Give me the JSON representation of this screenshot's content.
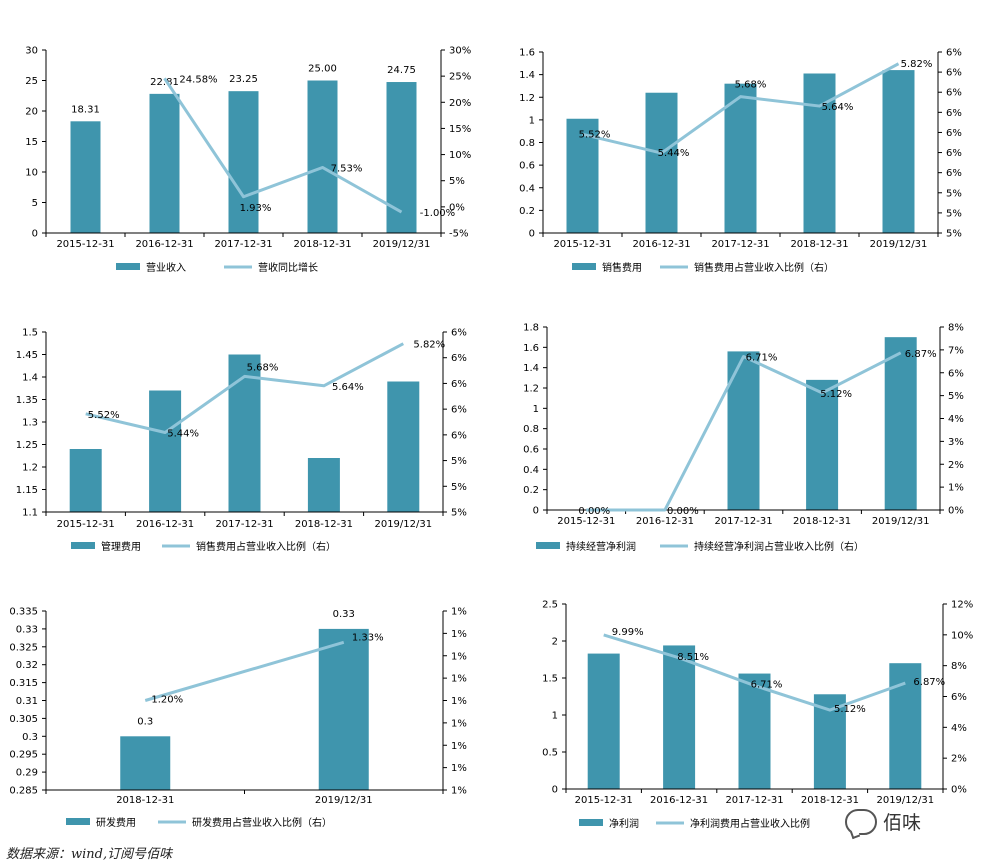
{
  "colors": {
    "bar": "#3f95ad",
    "line": "#8fc4d8",
    "axis": "#000000",
    "text": "#000000"
  },
  "source_note": "数据来源：wind,订阅号佰味",
  "watermark": "佰味",
  "chart_data": [
    {
      "type": "bar+line",
      "categories": [
        "2015-12-31",
        "2016-12-31",
        "2017-12-31",
        "2018-12-31",
        "2019/12/31"
      ],
      "bar": {
        "name": "营业收入",
        "values": [
          18.31,
          22.81,
          23.25,
          25.0,
          24.75
        ],
        "labels": [
          "18.31",
          "22.81",
          "23.25",
          "25.00",
          "24.75"
        ]
      },
      "line": {
        "name": "营收同比增长",
        "points": [
          [
            1,
            24.58
          ],
          [
            2,
            1.93
          ],
          [
            3,
            7.53
          ],
          [
            4,
            -1.0
          ]
        ],
        "labels": [
          "24.58%",
          "1.93%",
          "7.53%",
          "-1.00%"
        ]
      },
      "left_axis": {
        "min": 0,
        "max": 30,
        "ticks": [
          "0",
          "5",
          "10",
          "15",
          "20",
          "25",
          "30"
        ]
      },
      "right_axis": {
        "min": -5,
        "max": 30,
        "ticks": [
          "-5%",
          "0%",
          "5%",
          "10%",
          "15%",
          "20%",
          "25%",
          "30%"
        ]
      }
    },
    {
      "type": "bar+line",
      "categories": [
        "2015-12-31",
        "2016-12-31",
        "2017-12-31",
        "2018-12-31",
        "2019/12/31"
      ],
      "bar": {
        "name": "销售费用",
        "values": [
          1.01,
          1.24,
          1.32,
          1.41,
          1.44
        ],
        "labels": []
      },
      "line": {
        "name": "销售费用占营业收入比例（右）",
        "points": [
          [
            0,
            5.52
          ],
          [
            1,
            5.44
          ],
          [
            2,
            5.68
          ],
          [
            3,
            5.64
          ],
          [
            4,
            5.82
          ]
        ],
        "labels": [
          "5.52%",
          "5.44%",
          "5.68%",
          "5.64%",
          "5.82%"
        ]
      },
      "left_axis": {
        "min": 0,
        "max": 1.6,
        "ticks": [
          "0",
          "0.2",
          "0.4",
          "0.6",
          "0.8",
          "1",
          "1.2",
          "1.4",
          "1.6"
        ]
      },
      "right_axis": {
        "min": 5.1,
        "max": 5.87,
        "ticks": [
          "5%",
          "5%",
          "5%",
          "6%",
          "6%",
          "6%",
          "6%",
          "6%",
          "6%",
          "6%"
        ]
      }
    },
    {
      "type": "bar+line",
      "categories": [
        "2015-12-31",
        "2016-12-31",
        "2017-12-31",
        "2018-12-31",
        "2019/12/31"
      ],
      "bar": {
        "name": "管理费用",
        "values": [
          1.24,
          1.37,
          1.45,
          1.22,
          1.39
        ],
        "labels": []
      },
      "line": {
        "name": "销售费用占营业收入比例（右）",
        "points": [
          [
            0,
            5.52
          ],
          [
            1,
            5.44
          ],
          [
            2,
            5.68
          ],
          [
            3,
            5.64
          ],
          [
            4,
            5.82
          ]
        ],
        "labels": [
          "5.52%",
          "5.44%",
          "5.68%",
          "5.64%",
          "5.82%"
        ]
      },
      "left_axis": {
        "min": 1.1,
        "max": 1.5,
        "ticks": [
          "1.1",
          "1.15",
          "1.2",
          "1.25",
          "1.3",
          "1.35",
          "1.4",
          "1.45",
          "1.5"
        ]
      },
      "right_axis": {
        "min": 5.1,
        "max": 5.87,
        "ticks": [
          "5%",
          "5%",
          "5%",
          "6%",
          "6%",
          "6%",
          "6%",
          "6%"
        ]
      }
    },
    {
      "type": "bar+line",
      "categories": [
        "2015-12-31",
        "2016-12-31",
        "2017-12-31",
        "2018-12-31",
        "2019/12/31"
      ],
      "bar": {
        "name": "持续经营净利润",
        "values": [
          0,
          0,
          1.56,
          1.28,
          1.7
        ],
        "labels": []
      },
      "line": {
        "name": "持续经营净利润占营业收入比例（右）",
        "points": [
          [
            0,
            0.0
          ],
          [
            1,
            0.0
          ],
          [
            2,
            6.71
          ],
          [
            3,
            5.12
          ],
          [
            4,
            6.87
          ]
        ],
        "labels": [
          "0.00%",
          "0.00%",
          "6.71%",
          "5.12%",
          "6.87%"
        ]
      },
      "left_axis": {
        "min": 0,
        "max": 1.8,
        "ticks": [
          "0",
          "0.2",
          "0.4",
          "0.6",
          "0.8",
          "1",
          "1.2",
          "1.4",
          "1.6",
          "1.8"
        ]
      },
      "right_axis": {
        "min": 0,
        "max": 8,
        "ticks": [
          "0%",
          "1%",
          "2%",
          "3%",
          "4%",
          "5%",
          "6%",
          "7%",
          "8%"
        ]
      }
    },
    {
      "type": "bar+line",
      "categories": [
        "2018-12-31",
        "2019/12/31"
      ],
      "bar": {
        "name": "研发费用",
        "values": [
          0.3,
          0.33
        ],
        "labels": [
          "0.3",
          "0.33"
        ]
      },
      "line": {
        "name": "研发费用占营业收入比例（右）",
        "points": [
          [
            0,
            1.2
          ],
          [
            1,
            1.33
          ]
        ],
        "labels": [
          "1.20%",
          "1.33%"
        ]
      },
      "left_axis": {
        "min": 0.285,
        "max": 0.335,
        "ticks": [
          "0.285",
          "0.29",
          "0.295",
          "0.3",
          "0.305",
          "0.31",
          "0.315",
          "0.32",
          "0.325",
          "0.33",
          "0.335"
        ]
      },
      "right_axis": {
        "min": 1.0,
        "max": 1.4,
        "ticks": [
          "1%",
          "1%",
          "1%",
          "1%",
          "1%",
          "1%",
          "1%",
          "1%",
          "1%"
        ]
      }
    },
    {
      "type": "bar+line",
      "categories": [
        "2015-12-31",
        "2016-12-31",
        "2017-12-31",
        "2018-12-31",
        "2019/12/31"
      ],
      "bar": {
        "name": "净利润",
        "values": [
          1.83,
          1.94,
          1.56,
          1.28,
          1.7
        ],
        "labels": []
      },
      "line": {
        "name": "净利润费用占营业收入比例",
        "points": [
          [
            0,
            9.99
          ],
          [
            1,
            8.51
          ],
          [
            2,
            6.71
          ],
          [
            3,
            5.12
          ],
          [
            4,
            6.87
          ]
        ],
        "labels": [
          "9.99%",
          "8.51%",
          "6.71%",
          "5.12%",
          "6.87%"
        ]
      },
      "left_axis": {
        "min": 0,
        "max": 2.5,
        "ticks": [
          "0",
          "0.5",
          "1",
          "1.5",
          "2",
          "2.5"
        ]
      },
      "right_axis": {
        "min": 0,
        "max": 12,
        "ticks": [
          "0%",
          "2%",
          "4%",
          "6%",
          "8%",
          "10%",
          "12%"
        ]
      }
    }
  ]
}
